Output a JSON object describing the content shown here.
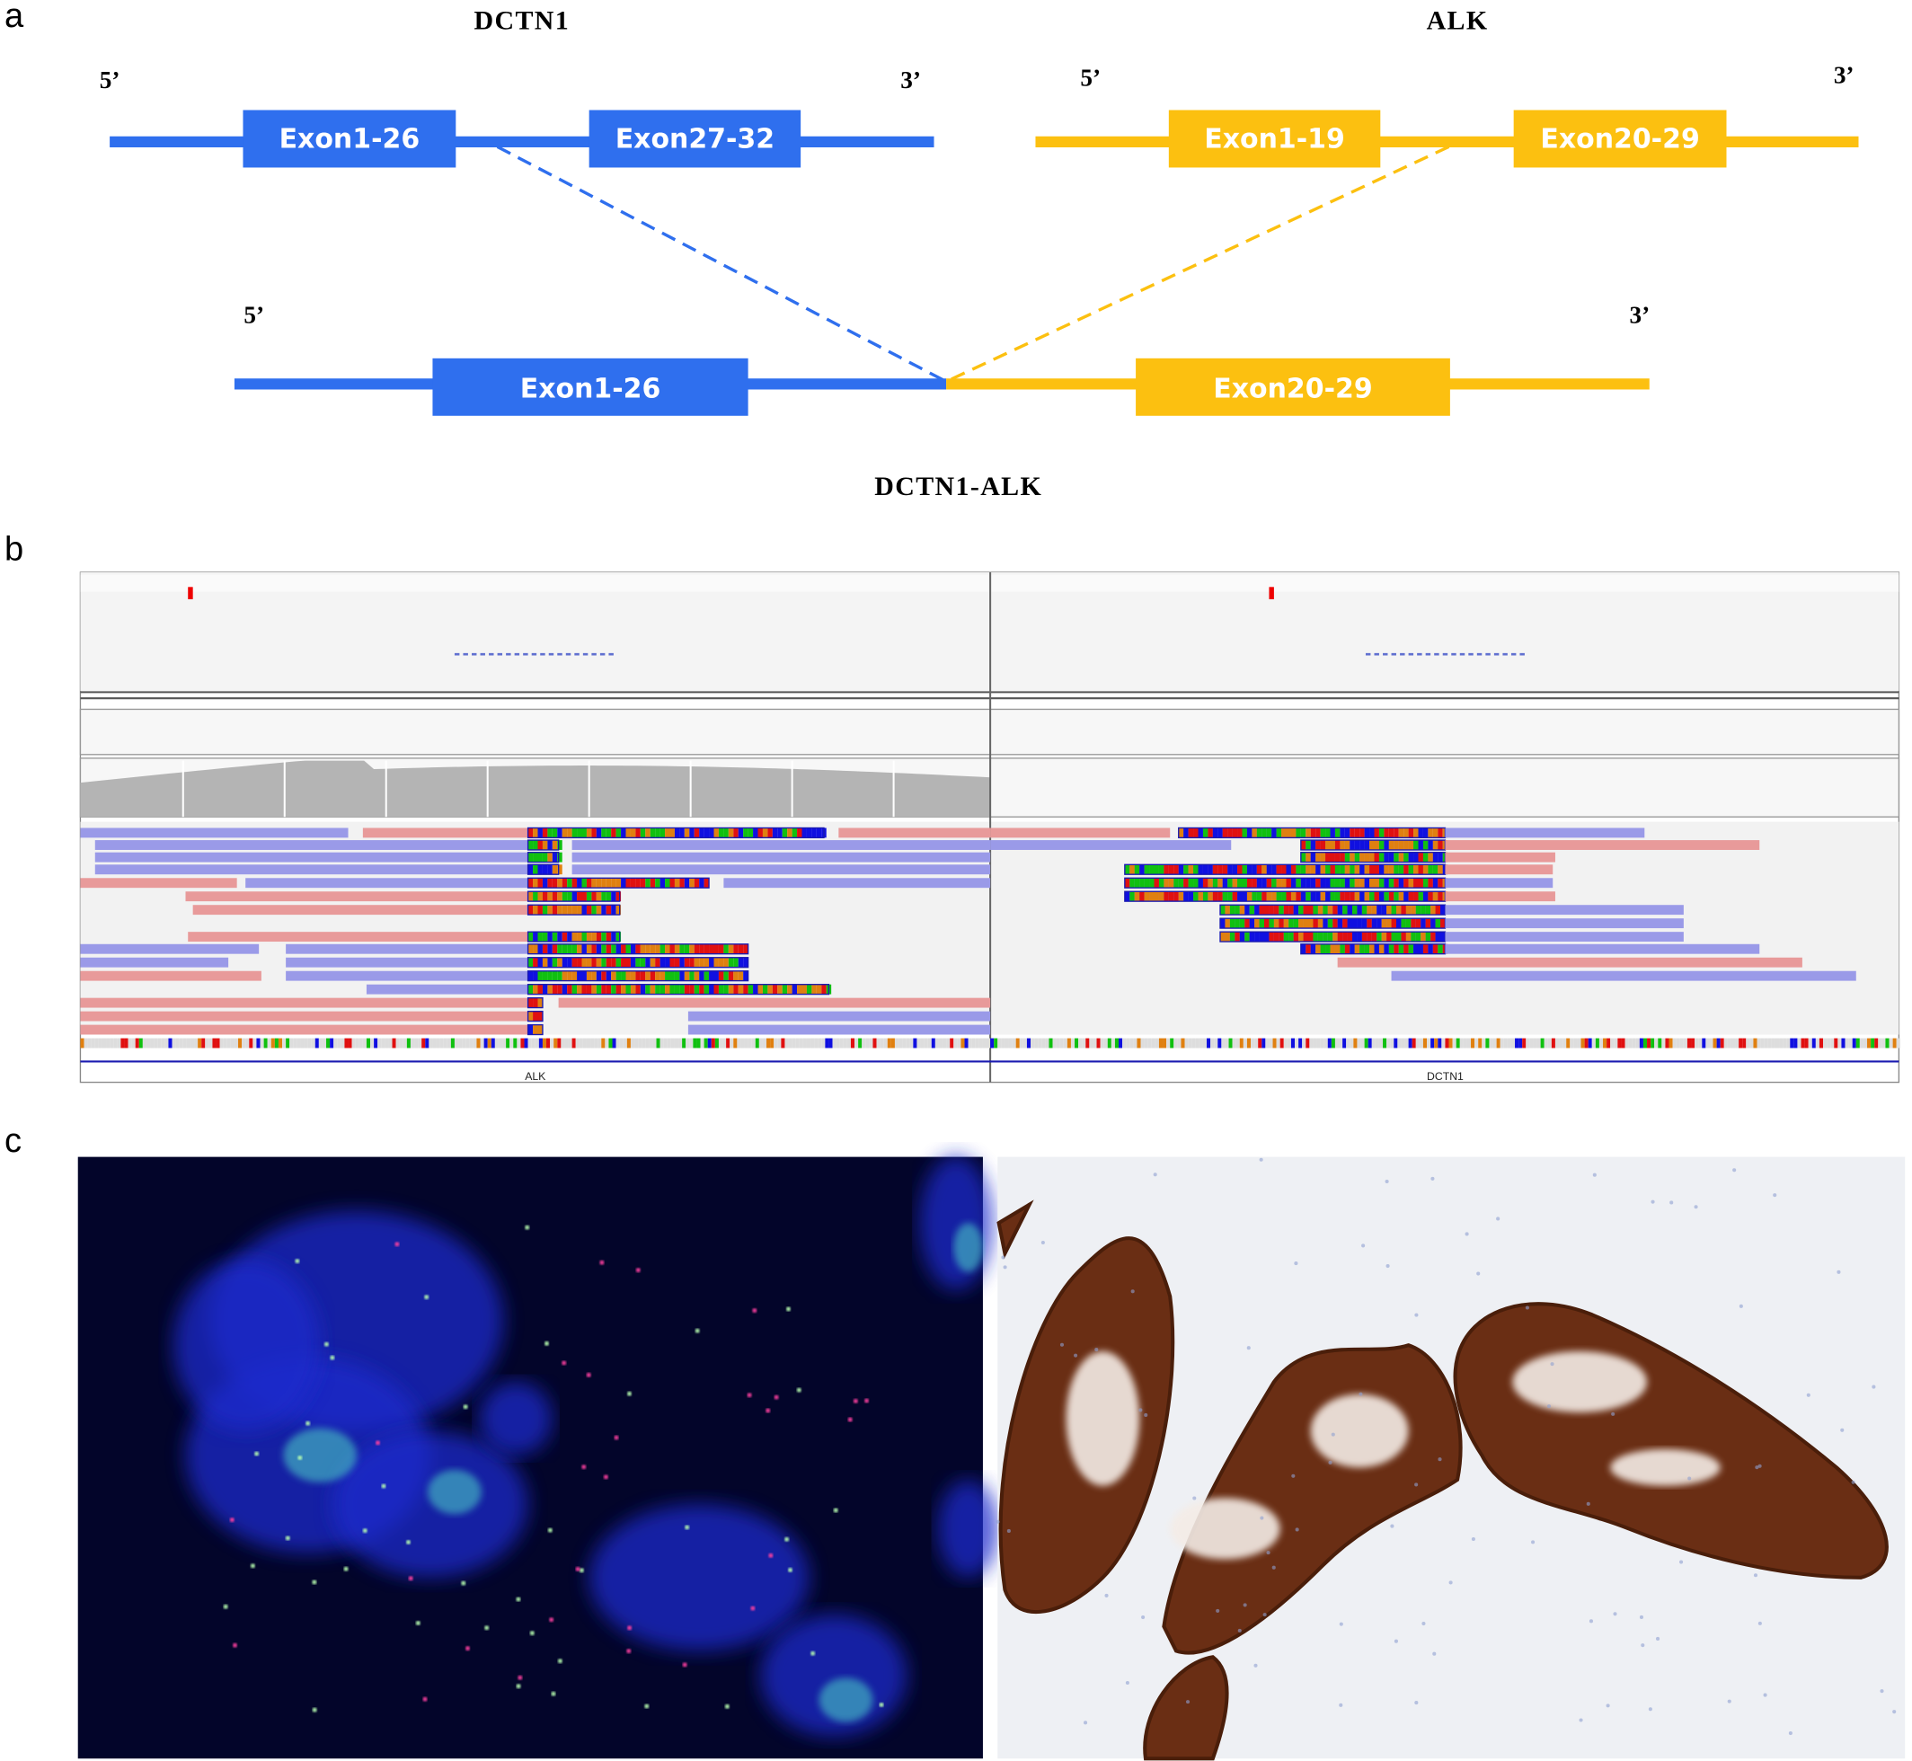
{
  "panels": {
    "a": {
      "label": "a",
      "genes": [
        {
          "name": "DCTN1",
          "five": "5’",
          "three": "3’",
          "exons": [
            "Exon1-26",
            "Exon27-32"
          ]
        },
        {
          "name": "ALK",
          "five": "5’",
          "three": "3’",
          "exons": [
            "Exon1-19",
            "Exon20-29"
          ]
        }
      ],
      "fusion": {
        "name": "DCTN1-ALK",
        "five": "5’",
        "three": "3’",
        "exons": [
          "Exon1-26",
          "Exon20-29"
        ]
      }
    },
    "b": {
      "label": "b",
      "tracks": [
        "ALK",
        "DCTN1"
      ]
    },
    "c": {
      "label": "c"
    }
  }
}
